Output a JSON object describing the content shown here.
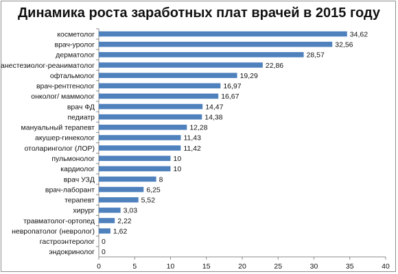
{
  "chart_data": {
    "type": "bar",
    "orientation": "horizontal",
    "title": "Динамика роста заработных плат врачей в 2015 году",
    "xlabel": "",
    "ylabel": "",
    "xlim": [
      0,
      40
    ],
    "xticks": [
      0,
      5,
      10,
      15,
      20,
      25,
      30,
      35,
      40
    ],
    "categories": [
      "косметолог",
      "врач-уролог",
      "дерматолог",
      "анестезиолог-реаниматолог",
      "офтальмолог",
      "врач-рентгенолог",
      "онколог/ маммолог",
      "врач ФД",
      "педиатр",
      "мануальный терапевт",
      "акушер-гинеколог",
      "отоларинголог (ЛОР)",
      "пульмонолог",
      "кардиолог",
      "врач УЗД",
      "врач-лаборант",
      "терапевт",
      "хирург",
      "травматолог-ортопед",
      "невропатолог (невролог)",
      "гастроэнтеролог",
      "эндокринолог"
    ],
    "values": [
      34.62,
      32.56,
      28.57,
      22.86,
      19.29,
      16.97,
      16.67,
      14.47,
      14.38,
      12.28,
      11.43,
      11.42,
      10,
      10,
      8,
      6.25,
      5.52,
      3.03,
      2.22,
      1.62,
      0,
      0
    ],
    "value_labels": [
      "34,62",
      "32,56",
      "28,57",
      "22,86",
      "19,29",
      "16,97",
      "16,67",
      "14,47",
      "14,38",
      "12,28",
      "11,43",
      "11,42",
      "10",
      "10",
      "8",
      "6,25",
      "5,52",
      "3,03",
      "2,22",
      "1,62",
      "0",
      "0"
    ],
    "bar_color": "#4f81bd",
    "grid": false,
    "legend": "none"
  }
}
